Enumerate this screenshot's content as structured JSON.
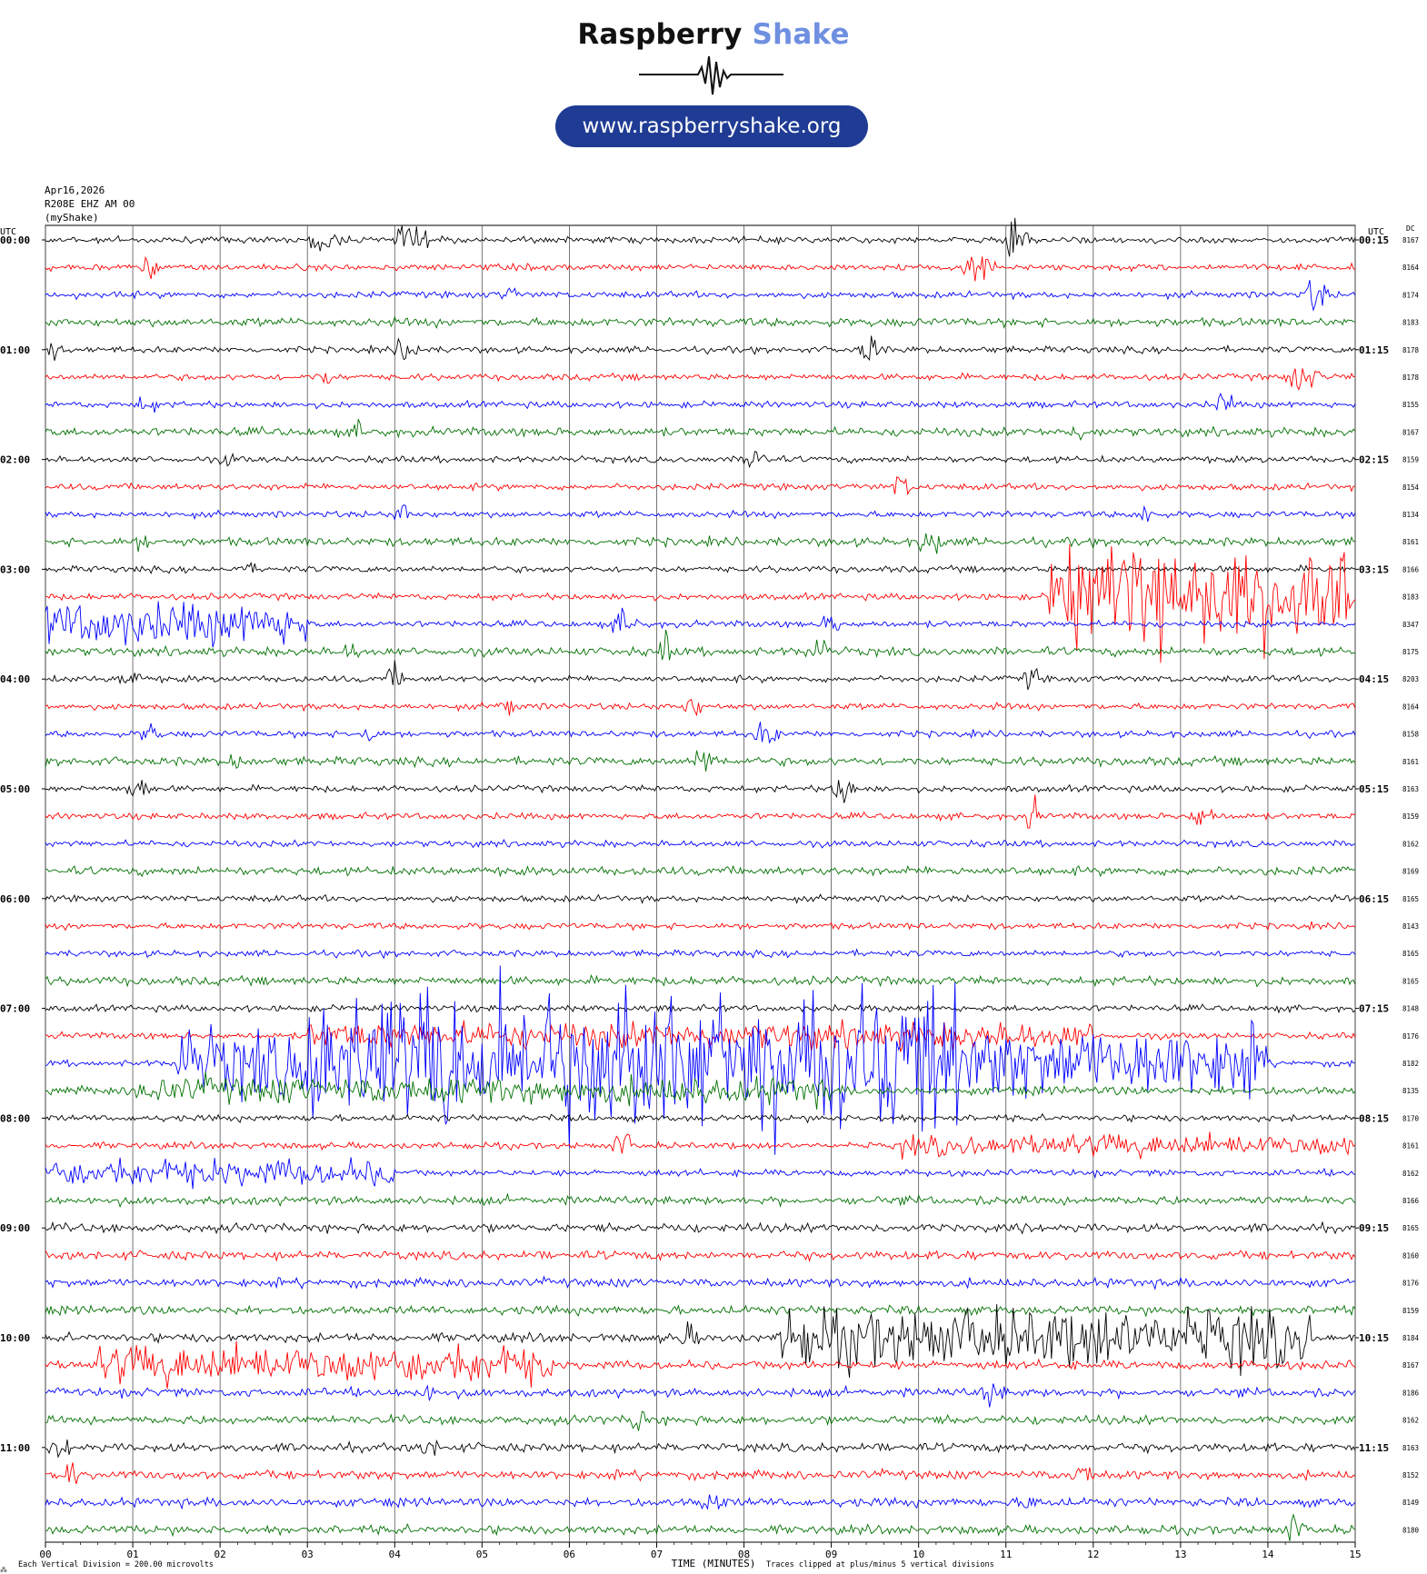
{
  "brand": {
    "name_part1": "Raspberry",
    "name_part2": " Shake",
    "url": "www.raspberryshake.org"
  },
  "header": {
    "date": "Apr16,2026",
    "station": "R208E EHZ AM 00",
    "network": "(myShake)"
  },
  "chart_data": {
    "type": "line",
    "title": "",
    "xlabel": "TIME (MINUTES)",
    "left_axis_title": "UTC",
    "right_axis_title": "UTC",
    "dc_title": "DC",
    "x_ticks": [
      "00",
      "01",
      "02",
      "03",
      "04",
      "05",
      "06",
      "07",
      "08",
      "09",
      "10",
      "11",
      "12",
      "13",
      "14",
      "15"
    ],
    "xlim": [
      0,
      15
    ],
    "left_hour_labels": [
      "00:00",
      "01:00",
      "02:00",
      "03:00",
      "04:00",
      "05:00",
      "06:00",
      "07:00",
      "08:00",
      "09:00",
      "10:00",
      "11:00"
    ],
    "right_hour_labels": [
      "00:15",
      "01:15",
      "02:15",
      "03:15",
      "04:15",
      "05:15",
      "06:15",
      "07:15",
      "08:15",
      "09:15",
      "10:15",
      "11:15"
    ],
    "trace_colors": [
      "#000000",
      "#ff0000",
      "#0000ff",
      "#007000"
    ],
    "dc_offsets": [
      8167,
      8164,
      8174,
      8183,
      8178,
      8178,
      8155,
      8167,
      8159,
      8154,
      8134,
      8161,
      8166,
      8183,
      8347,
      8175,
      8203,
      8164,
      8158,
      8161,
      8163,
      8159,
      8162,
      8169,
      8165,
      8143,
      8165,
      8165,
      8148,
      8176,
      8182,
      8135,
      8170,
      8161,
      8162,
      8166,
      8165,
      8160,
      8176,
      8159,
      8184,
      8167,
      8186,
      8162,
      8163,
      8152,
      8149,
      8180
    ],
    "footer_division": "Each Vertical Division =  200.00 microvolts",
    "footer_clip": "Traces clipped at plus/minus 5 vertical divisions",
    "corner_mark": "⁂"
  }
}
